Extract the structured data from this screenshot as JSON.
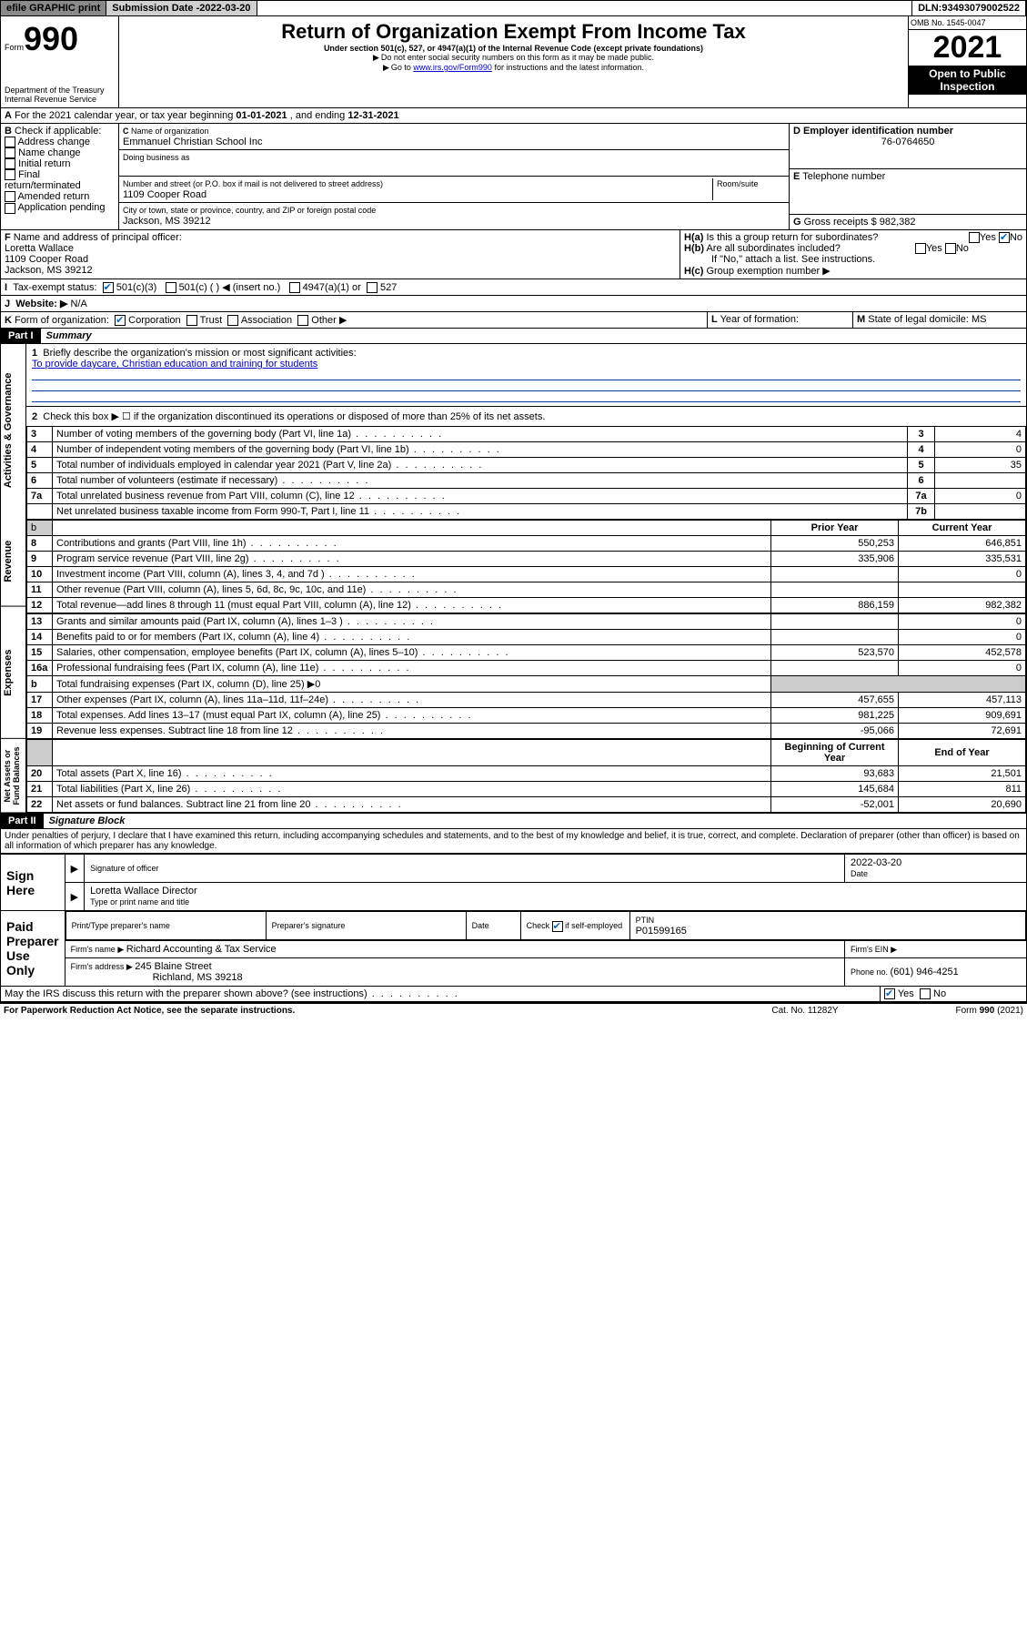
{
  "topbar": {
    "efile": "efile GRAPHIC print",
    "sub_label": "Submission Date - ",
    "sub_date": "2022-03-20",
    "dln_label": "DLN: ",
    "dln": "93493079002522"
  },
  "header": {
    "form_prefix": "Form",
    "form_no": "990",
    "dept": "Department of the Treasury",
    "irs": "Internal Revenue Service",
    "title": "Return of Organization Exempt From Income Tax",
    "subtitle": "Under section 501(c), 527, or 4947(a)(1) of the Internal Revenue Code (except private foundations)",
    "note1": "Do not enter social security numbers on this form as it may be made public.",
    "note2_pre": "Go to ",
    "note2_link": "www.irs.gov/Form990",
    "note2_post": " for instructions and the latest information.",
    "omb_label": "OMB No. ",
    "omb": "1545-0047",
    "year": "2021",
    "inspect1": "Open to Public",
    "inspect2": "Inspection"
  },
  "A": {
    "text_pre": "For the 2021 calendar year, or tax year beginning ",
    "begin": "01-01-2021",
    "mid": " , and ending ",
    "end": "12-31-2021"
  },
  "B": {
    "label": "Check if applicable:",
    "opts": [
      "Address change",
      "Name change",
      "Initial return",
      "Final return/terminated",
      "Amended return",
      "Application pending"
    ]
  },
  "C": {
    "name_label": "Name of organization",
    "name": "Emmanuel Christian School Inc",
    "dba_label": "Doing business as",
    "addr_label": "Number and street (or P.O. box if mail is not delivered to street address)",
    "room_label": "Room/suite",
    "addr": "1109 Cooper Road",
    "city_label": "City or town, state or province, country, and ZIP or foreign postal code",
    "city": "Jackson, MS  39212"
  },
  "D": {
    "label": "Employer identification number",
    "val": "76-0764650"
  },
  "E": {
    "label": "Telephone number",
    "val": ""
  },
  "G": {
    "label": "Gross receipts $ ",
    "val": "982,382"
  },
  "F": {
    "label": "Name and address of principal officer:",
    "name": "Loretta Wallace",
    "addr": "1109 Cooper Road",
    "city": "Jackson, MS  39212"
  },
  "H": {
    "a": "Is this a group return for subordinates?",
    "a_no": true,
    "b": "Are all subordinates included?",
    "b_note": "If \"No,\" attach a list. See instructions.",
    "c": "Group exemption number ▶"
  },
  "I": {
    "label": "Tax-exempt status:",
    "c3": "501(c)(3)",
    "c": "501(c) (  ) ◀ (insert no.)",
    "a1": "4947(a)(1) or",
    "s527": "527"
  },
  "J": {
    "label": "Website: ▶",
    "val": "N/A"
  },
  "K": {
    "label": "Form of organization:",
    "opts": [
      "Corporation",
      "Trust",
      "Association",
      "Other ▶"
    ],
    "corp_checked": true
  },
  "L": {
    "label": "Year of formation:",
    "val": ""
  },
  "M": {
    "label": "State of legal domicile: ",
    "val": "MS"
  },
  "part1": {
    "hdr": "Part I",
    "title": "Summary",
    "l1_label": "Briefly describe the organization's mission or most significant activities:",
    "l1_val": "To provide daycare, Christian education and training for students",
    "l2": "Check this box ▶ ☐  if the organization discontinued its operations or disposed of more than 25% of its net assets.",
    "sections": {
      "gov": "Activities & Governance",
      "rev": "Revenue",
      "exp": "Expenses",
      "net": "Net Assets or Fund Balances"
    },
    "rows_gov": [
      {
        "n": "3",
        "t": "Number of voting members of the governing body (Part VI, line 1a)",
        "box": "3",
        "v": "4"
      },
      {
        "n": "4",
        "t": "Number of independent voting members of the governing body (Part VI, line 1b)",
        "box": "4",
        "v": "0"
      },
      {
        "n": "5",
        "t": "Total number of individuals employed in calendar year 2021 (Part V, line 2a)",
        "box": "5",
        "v": "35"
      },
      {
        "n": "6",
        "t": "Total number of volunteers (estimate if necessary)",
        "box": "6",
        "v": ""
      },
      {
        "n": "7a",
        "t": "Total unrelated business revenue from Part VIII, column (C), line 12",
        "box": "7a",
        "v": "0"
      },
      {
        "n": "",
        "t": "Net unrelated business taxable income from Form 990-T, Part I, line 11",
        "box": "7b",
        "v": ""
      }
    ],
    "col_hdrs": {
      "b": "b",
      "prior": "Prior Year",
      "current": "Current Year"
    },
    "rows_rev": [
      {
        "n": "8",
        "t": "Contributions and grants (Part VIII, line 1h)",
        "p": "550,253",
        "c": "646,851"
      },
      {
        "n": "9",
        "t": "Program service revenue (Part VIII, line 2g)",
        "p": "335,906",
        "c": "335,531"
      },
      {
        "n": "10",
        "t": "Investment income (Part VIII, column (A), lines 3, 4, and 7d )",
        "p": "",
        "c": "0"
      },
      {
        "n": "11",
        "t": "Other revenue (Part VIII, column (A), lines 5, 6d, 8c, 9c, 10c, and 11e)",
        "p": "",
        "c": ""
      },
      {
        "n": "12",
        "t": "Total revenue—add lines 8 through 11 (must equal Part VIII, column (A), line 12)",
        "p": "886,159",
        "c": "982,382"
      }
    ],
    "rows_exp": [
      {
        "n": "13",
        "t": "Grants and similar amounts paid (Part IX, column (A), lines 1–3 )",
        "p": "",
        "c": "0"
      },
      {
        "n": "14",
        "t": "Benefits paid to or for members (Part IX, column (A), line 4)",
        "p": "",
        "c": "0"
      },
      {
        "n": "15",
        "t": "Salaries, other compensation, employee benefits (Part IX, column (A), lines 5–10)",
        "p": "523,570",
        "c": "452,578"
      },
      {
        "n": "16a",
        "t": "Professional fundraising fees (Part IX, column (A), line 11e)",
        "p": "",
        "c": "0"
      },
      {
        "n": "b",
        "t": "Total fundraising expenses (Part IX, column (D), line 25) ▶0",
        "p": "—",
        "c": "—"
      },
      {
        "n": "17",
        "t": "Other expenses (Part IX, column (A), lines 11a–11d, 11f–24e)",
        "p": "457,655",
        "c": "457,113"
      },
      {
        "n": "18",
        "t": "Total expenses. Add lines 13–17 (must equal Part IX, column (A), line 25)",
        "p": "981,225",
        "c": "909,691"
      },
      {
        "n": "19",
        "t": "Revenue less expenses. Subtract line 18 from line 12",
        "p": "-95,066",
        "c": "72,691"
      }
    ],
    "net_hdrs": {
      "begin": "Beginning of Current Year",
      "end": "End of Year"
    },
    "rows_net": [
      {
        "n": "20",
        "t": "Total assets (Part X, line 16)",
        "p": "93,683",
        "c": "21,501"
      },
      {
        "n": "21",
        "t": "Total liabilities (Part X, line 26)",
        "p": "145,684",
        "c": "811"
      },
      {
        "n": "22",
        "t": "Net assets or fund balances. Subtract line 21 from line 20",
        "p": "-52,001",
        "c": "20,690"
      }
    ]
  },
  "part2": {
    "hdr": "Part II",
    "title": "Signature Block",
    "decl": "Under penalties of perjury, I declare that I have examined this return, including accompanying schedules and statements, and to the best of my knowledge and belief, it is true, correct, and complete. Declaration of preparer (other than officer) is based on all information of which preparer has any knowledge.",
    "sign_here": "Sign Here",
    "sig_label": "Signature of officer",
    "date_label": "Date",
    "sig_date": "2022-03-20",
    "name_title": "Loretta Wallace  Director",
    "name_title_label": "Type or print name and title",
    "paid": "Paid Preparer Use Only",
    "prep_name_label": "Print/Type preparer's name",
    "prep_sig_label": "Preparer's signature",
    "prep_date_label": "Date",
    "check_self": "Check ☑ if self-employed",
    "ptin_label": "PTIN",
    "ptin": "P01599165",
    "firm_name_label": "Firm's name ▶ ",
    "firm_name": "Richard Accounting & Tax Service",
    "firm_ein_label": "Firm's EIN ▶",
    "firm_addr_label": "Firm's address ▶ ",
    "firm_addr": "245 Blaine Street",
    "firm_city": "Richland, MS  39218",
    "phone_label": "Phone no. ",
    "phone": "(601) 946-4251",
    "may_irs": "May the IRS discuss this return with the preparer shown above? (see instructions)",
    "yes": "Yes",
    "no": "No",
    "pra": "For Paperwork Reduction Act Notice, see the separate instructions.",
    "cat": "Cat. No. 11282Y",
    "form_foot": "Form 990 (2021)"
  }
}
